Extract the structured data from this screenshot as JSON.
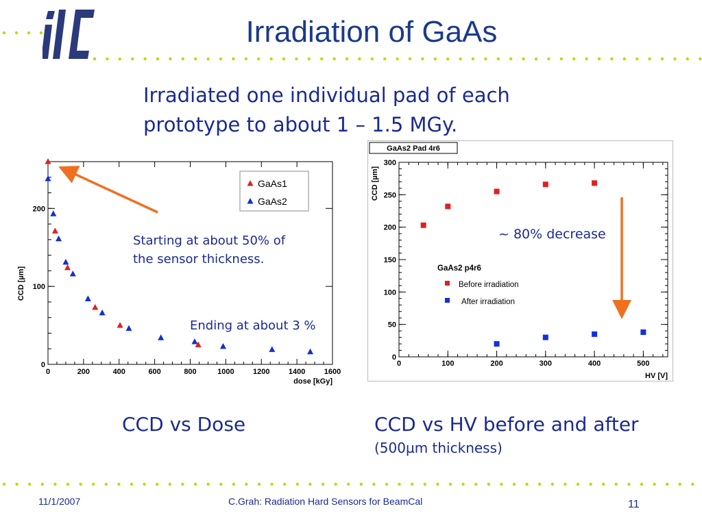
{
  "slide": {
    "title": "Irradiation of GaAs",
    "subtitle_line1": "Irradiated one individual pad of each",
    "subtitle_line2": "prototype to about 1 – 1.5 MGy.",
    "annotation_start_line1": "Starting at about 50% of",
    "annotation_start_line2": "the sensor thickness.",
    "annotation_end": "Ending at about 3 %",
    "annotation_decrease": "~ 80% decrease",
    "caption_left": "CCD vs Dose",
    "caption_right": "CCD vs HV before and after",
    "caption_right_sub": "(500µm thickness)",
    "footer_date": "11/1/2007",
    "footer_title": "C.Grah: Radiation Hard Sensors for BeamCal",
    "footer_page": "11",
    "colors": {
      "title": "#1a3a8a",
      "text": "#1a2a90",
      "arrow": "#f07020",
      "dots": "#c8d400",
      "logo": "#2a3a7a"
    }
  },
  "chart_data": [
    {
      "type": "scatter",
      "title": "",
      "xlabel": "dose [kGy]",
      "ylabel": "CCD [µm]",
      "xlim": [
        0,
        1600
      ],
      "ylim": [
        0,
        260
      ],
      "xticks": [
        0,
        200,
        400,
        600,
        800,
        1000,
        1200,
        1400,
        1600
      ],
      "yticks": [
        0,
        100,
        200
      ],
      "legend": {
        "position": "top-right"
      },
      "series": [
        {
          "name": "GaAs1",
          "marker": "triangle",
          "color": "#e02020",
          "x": [
            0,
            40,
            110,
            265,
            405,
            845
          ],
          "y": [
            260,
            171,
            124,
            73,
            50,
            25
          ]
        },
        {
          "name": "GaAs2",
          "marker": "triangle",
          "color": "#1030d0",
          "x": [
            0,
            30,
            60,
            100,
            140,
            225,
            305,
            455,
            635,
            825,
            985,
            1260,
            1475
          ],
          "y": [
            238,
            193,
            161,
            131,
            116,
            84,
            66,
            46,
            34,
            29,
            23,
            19,
            16
          ]
        }
      ]
    },
    {
      "type": "scatter",
      "title": "GaAs2 Pad 4r6",
      "xlabel": "HV [V]",
      "ylabel": "CCD [µm]",
      "xlim": [
        0,
        550
      ],
      "ylim": [
        0,
        300
      ],
      "xticks": [
        0,
        100,
        200,
        300,
        400,
        500
      ],
      "yticks": [
        0,
        50,
        100,
        150,
        200,
        250,
        300
      ],
      "legend": {
        "title": "GaAs2 p4r6",
        "position": "center-left"
      },
      "series": [
        {
          "name": "Before irradiation",
          "marker": "square",
          "color": "#e02020",
          "x": [
            50,
            100,
            200,
            300,
            400
          ],
          "y": [
            203,
            232,
            255,
            266,
            268
          ]
        },
        {
          "name": "After irradiation",
          "marker": "square",
          "color": "#1030e0",
          "x": [
            200,
            300,
            400,
            500
          ],
          "y": [
            20,
            30,
            35,
            38
          ]
        }
      ]
    }
  ]
}
